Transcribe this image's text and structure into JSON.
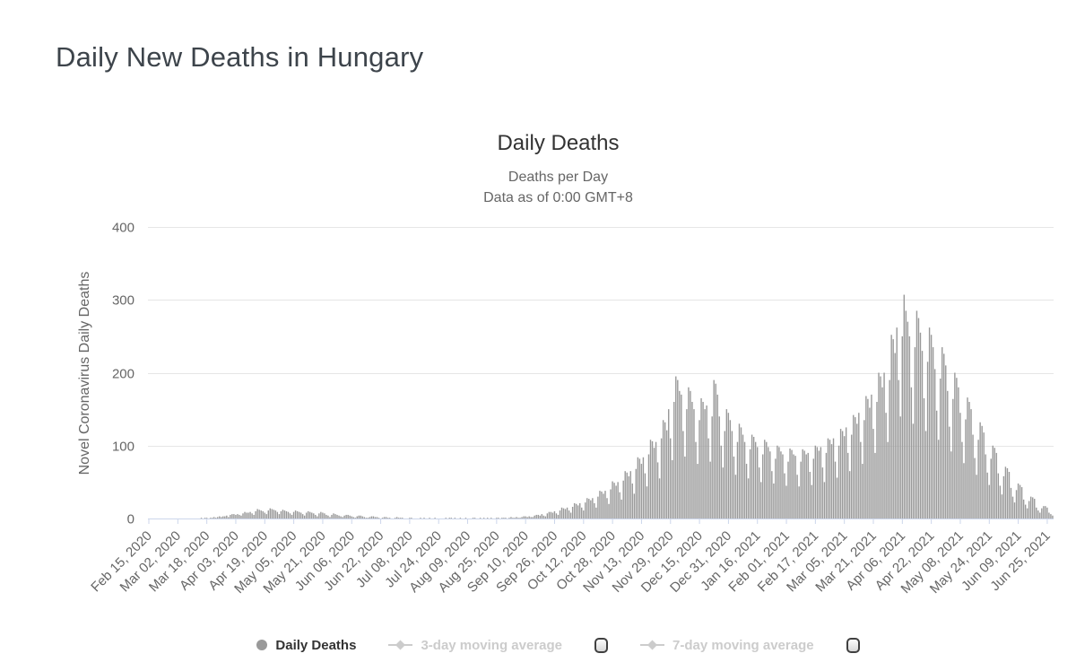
{
  "page": {
    "title": "Daily New Deaths in Hungary"
  },
  "legend": {
    "items": [
      {
        "label": "Daily Deaths",
        "enabled": true,
        "marker": "circle",
        "color": "#999999"
      },
      {
        "label": "3-day moving average",
        "enabled": false,
        "marker": "diamond-line",
        "color": "#cccccc"
      },
      {
        "label": "7-day moving average",
        "enabled": false,
        "marker": "diamond-line",
        "color": "#cccccc"
      }
    ]
  },
  "chart_data": {
    "type": "bar",
    "title": "Daily Deaths",
    "subtitle1": "Deaths per Day",
    "subtitle2": "Data as of 0:00 GMT+8",
    "ylabel": "Novel Coronavirus Daily Deaths",
    "xlabel": "",
    "ylim": [
      0,
      400
    ],
    "yticks": [
      0,
      100,
      200,
      300,
      400
    ],
    "grid": true,
    "legend_position": "bottom",
    "bar_color": "#999999",
    "grid_color": "#e6e6e6",
    "axis_line_color": "#ccd6eb",
    "tick_label_color": "#666666",
    "x_start_date": "Feb 15, 2020",
    "x_tick_interval_days": 16,
    "x_tick_labels": [
      "Feb 15, 2020",
      "Mar 02, 2020",
      "Mar 18, 2020",
      "Apr 03, 2020",
      "Apr 19, 2020",
      "May 05, 2020",
      "May 21, 2020",
      "Jun 06, 2020",
      "Jun 22, 2020",
      "Jul 08, 2020",
      "Jul 24, 2020",
      "Aug 09, 2020",
      "Aug 25, 2020",
      "Sep 10, 2020",
      "Sep 26, 2020",
      "Oct 12, 2020",
      "Oct 28, 2020",
      "Nov 13, 2020",
      "Nov 29, 2020",
      "Dec 15, 2020",
      "Dec 31, 2020",
      "Jan 16, 2021",
      "Feb 01, 2021",
      "Feb 17, 2021",
      "Mar 05, 2021",
      "Mar 21, 2021",
      "Apr 06, 2021",
      "Apr 22, 2021",
      "May 08, 2021",
      "May 24, 2021",
      "Jun 09, 2021",
      "Jun 25, 2021"
    ],
    "daily_values": [
      0,
      0,
      0,
      0,
      0,
      0,
      0,
      0,
      0,
      0,
      0,
      0,
      0,
      0,
      0,
      0,
      0,
      0,
      0,
      0,
      0,
      0,
      0,
      0,
      0,
      0,
      0,
      0,
      0,
      1,
      0,
      1,
      1,
      0,
      1,
      1,
      2,
      1,
      2,
      3,
      2,
      3,
      3,
      4,
      2,
      5,
      6,
      6,
      5,
      6,
      5,
      4,
      7,
      9,
      8,
      8,
      9,
      7,
      5,
      10,
      13,
      12,
      11,
      10,
      8,
      6,
      11,
      14,
      13,
      12,
      11,
      9,
      6,
      10,
      12,
      11,
      10,
      9,
      7,
      5,
      9,
      11,
      10,
      9,
      8,
      6,
      4,
      8,
      10,
      9,
      8,
      7,
      5,
      3,
      7,
      9,
      8,
      7,
      5,
      4,
      2,
      5,
      7,
      6,
      5,
      4,
      3,
      2,
      4,
      5,
      5,
      4,
      3,
      2,
      1,
      3,
      4,
      4,
      3,
      2,
      1,
      1,
      2,
      3,
      3,
      2,
      2,
      1,
      0,
      1,
      2,
      2,
      1,
      1,
      0,
      0,
      1,
      2,
      1,
      1,
      1,
      0,
      0,
      0,
      1,
      1,
      0,
      0,
      0,
      0,
      1,
      0,
      1,
      0,
      0,
      1,
      0,
      0,
      1,
      0,
      0,
      0,
      0,
      0,
      1,
      0,
      1,
      1,
      0,
      1,
      0,
      0,
      1,
      0,
      0,
      1,
      0,
      0,
      0,
      1,
      1,
      0,
      0,
      1,
      0,
      1,
      0,
      1,
      0,
      1,
      0,
      0,
      1,
      1,
      0,
      1,
      1,
      1,
      0,
      1,
      2,
      1,
      1,
      2,
      1,
      1,
      2,
      3,
      3,
      2,
      3,
      2,
      2,
      4,
      5,
      5,
      4,
      6,
      4,
      3,
      7,
      9,
      9,
      8,
      10,
      7,
      5,
      11,
      15,
      14,
      13,
      15,
      11,
      8,
      16,
      21,
      20,
      18,
      21,
      15,
      11,
      22,
      28,
      27,
      25,
      28,
      21,
      15,
      30,
      38,
      37,
      34,
      38,
      28,
      20,
      40,
      51,
      49,
      45,
      50,
      36,
      26,
      52,
      65,
      63,
      58,
      65,
      48,
      34,
      68,
      84,
      82,
      75,
      84,
      62,
      44,
      88,
      108,
      106,
      97,
      105,
      77,
      55,
      110,
      135,
      132,
      121,
      150,
      110,
      80,
      160,
      195,
      190,
      175,
      170,
      120,
      85,
      150,
      180,
      175,
      160,
      150,
      105,
      75,
      135,
      165,
      160,
      150,
      155,
      110,
      78,
      140,
      190,
      185,
      170,
      140,
      100,
      70,
      120,
      150,
      145,
      135,
      120,
      85,
      60,
      105,
      130,
      125,
      115,
      105,
      75,
      55,
      95,
      115,
      112,
      105,
      98,
      70,
      50,
      88,
      108,
      105,
      98,
      92,
      65,
      48,
      82,
      100,
      98,
      92,
      88,
      62,
      45,
      78,
      96,
      94,
      88,
      86,
      60,
      44,
      78,
      95,
      93,
      88,
      90,
      64,
      46,
      82,
      100,
      98,
      93,
      98,
      70,
      50,
      90,
      110,
      108,
      102,
      110,
      78,
      56,
      100,
      123,
      120,
      113,
      125,
      90,
      65,
      115,
      142,
      139,
      130,
      145,
      105,
      75,
      135,
      168,
      164,
      152,
      170,
      123,
      90,
      160,
      200,
      195,
      180,
      200,
      145,
      105,
      190,
      252,
      246,
      227,
      262,
      190,
      140,
      250,
      307,
      285,
      270,
      250,
      180,
      130,
      235,
      285,
      275,
      255,
      230,
      165,
      120,
      215,
      262,
      252,
      235,
      205,
      148,
      108,
      192,
      235,
      226,
      210,
      175,
      126,
      92,
      164,
      200,
      193,
      180,
      145,
      105,
      76,
      136,
      166,
      160,
      150,
      115,
      83,
      60,
      108,
      132,
      127,
      118,
      88,
      63,
      46,
      82,
      100,
      97,
      90,
      62,
      45,
      33,
      58,
      71,
      69,
      64,
      42,
      30,
      22,
      39,
      48,
      46,
      43,
      26,
      19,
      14,
      24,
      30,
      29,
      27,
      15,
      11,
      8,
      14,
      17,
      17,
      15,
      8,
      6,
      4
    ]
  }
}
